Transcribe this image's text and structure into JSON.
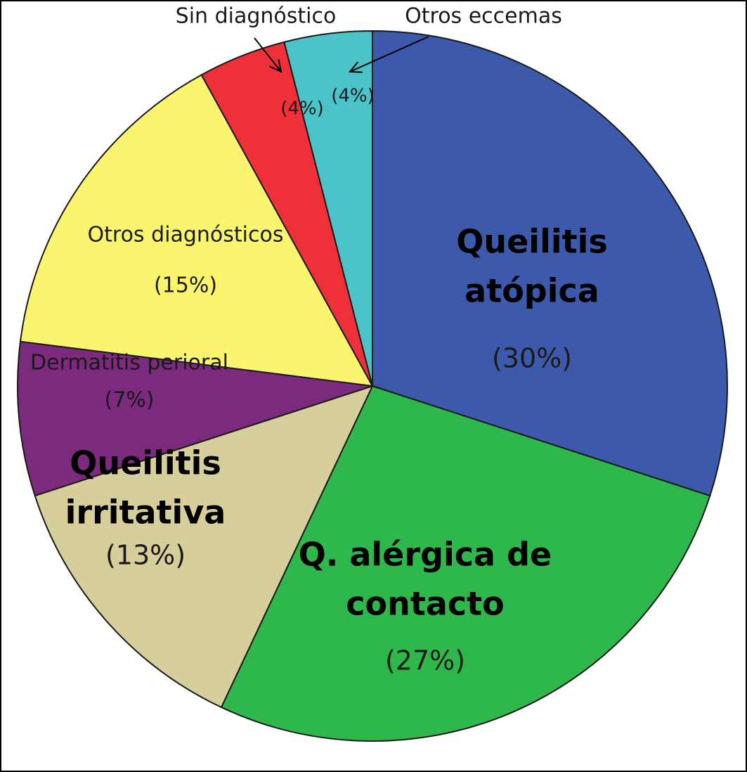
{
  "chart_data": {
    "type": "pie",
    "start_angle_deg": 0,
    "direction": "clockwise",
    "slices": [
      {
        "name": "Queilitis atópica",
        "lines": [
          "Queilitis",
          "atópica"
        ],
        "value": 30,
        "value_label": "(30%)",
        "color": "#3d59ab"
      },
      {
        "name": "Q. alérgica de contacto",
        "lines": [
          "Q. alérgica de",
          "contacto"
        ],
        "value": 27,
        "value_label": "(27%)",
        "color": "#2eb84b"
      },
      {
        "name": "Queilitis irritativa",
        "lines": [
          "Queilitis",
          "irritativa"
        ],
        "value": 13,
        "value_label": "(13%)",
        "color": "#d6cf9b"
      },
      {
        "name": "Dermatitis perioral",
        "lines": [
          "Dermatitis perioral"
        ],
        "value": 7,
        "value_label": "(7%)",
        "color": "#7b2a7e"
      },
      {
        "name": "Otros diagnósticos",
        "lines": [
          "Otros diagnósticos"
        ],
        "value": 15,
        "value_label": "(15%)",
        "color": "#fbf46e"
      },
      {
        "name": "Sin diagnóstico",
        "lines": [
          "Sin diagnóstico"
        ],
        "value": 4,
        "value_label": "(4%)",
        "color": "#ef3038"
      },
      {
        "name": "Otros eccemas",
        "lines": [
          "Otros eccemas"
        ],
        "value": 4,
        "value_label": "(4%)",
        "color": "#4cc3c9"
      }
    ]
  }
}
